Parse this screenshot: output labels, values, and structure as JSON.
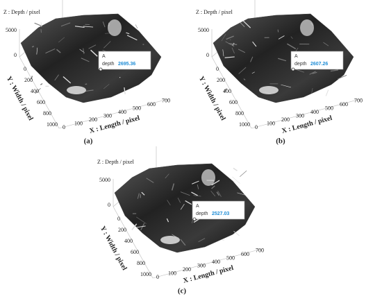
{
  "panels": [
    {
      "z_label": "Z : Depth / pixel",
      "y_label": "Y : Width / pixel",
      "x_label": "X : Length / pixel",
      "z_ticks": [
        "0",
        "5000"
      ],
      "y_ticks": [
        "0",
        "200",
        "400",
        "600",
        "800",
        "1000"
      ],
      "x_ticks": [
        "0",
        "100",
        "200",
        "300",
        "400",
        "500",
        "600",
        "700"
      ],
      "datatip": {
        "name": "A",
        "field": "depth",
        "value": "2695.36"
      },
      "caption": "(a)"
    },
    {
      "z_label": "Z : Depth / pixel",
      "y_label": "Y : Width / pixel",
      "x_label": "X : Length / pixel",
      "z_ticks": [
        "0",
        "5000"
      ],
      "y_ticks": [
        "0",
        "200",
        "400",
        "600",
        "800",
        "1000"
      ],
      "x_ticks": [
        "0",
        "100",
        "200",
        "300",
        "400",
        "500",
        "600",
        "700"
      ],
      "datatip": {
        "name": "A",
        "field": "depth",
        "value": "2607.26"
      },
      "caption": "(b)"
    },
    {
      "z_label": "Z : Depth / pixel",
      "y_label": "Y : Width / pixel",
      "x_label": "X : Length / pixel",
      "z_ticks": [
        "0",
        "5000"
      ],
      "y_ticks": [
        "0",
        "200",
        "400",
        "600",
        "800",
        "1000"
      ],
      "x_ticks": [
        "0",
        "100",
        "200",
        "300",
        "400",
        "500",
        "600",
        "700"
      ],
      "datatip": {
        "name": "A",
        "field": "depth",
        "value": "2527.03"
      },
      "caption": "(c)"
    }
  ]
}
